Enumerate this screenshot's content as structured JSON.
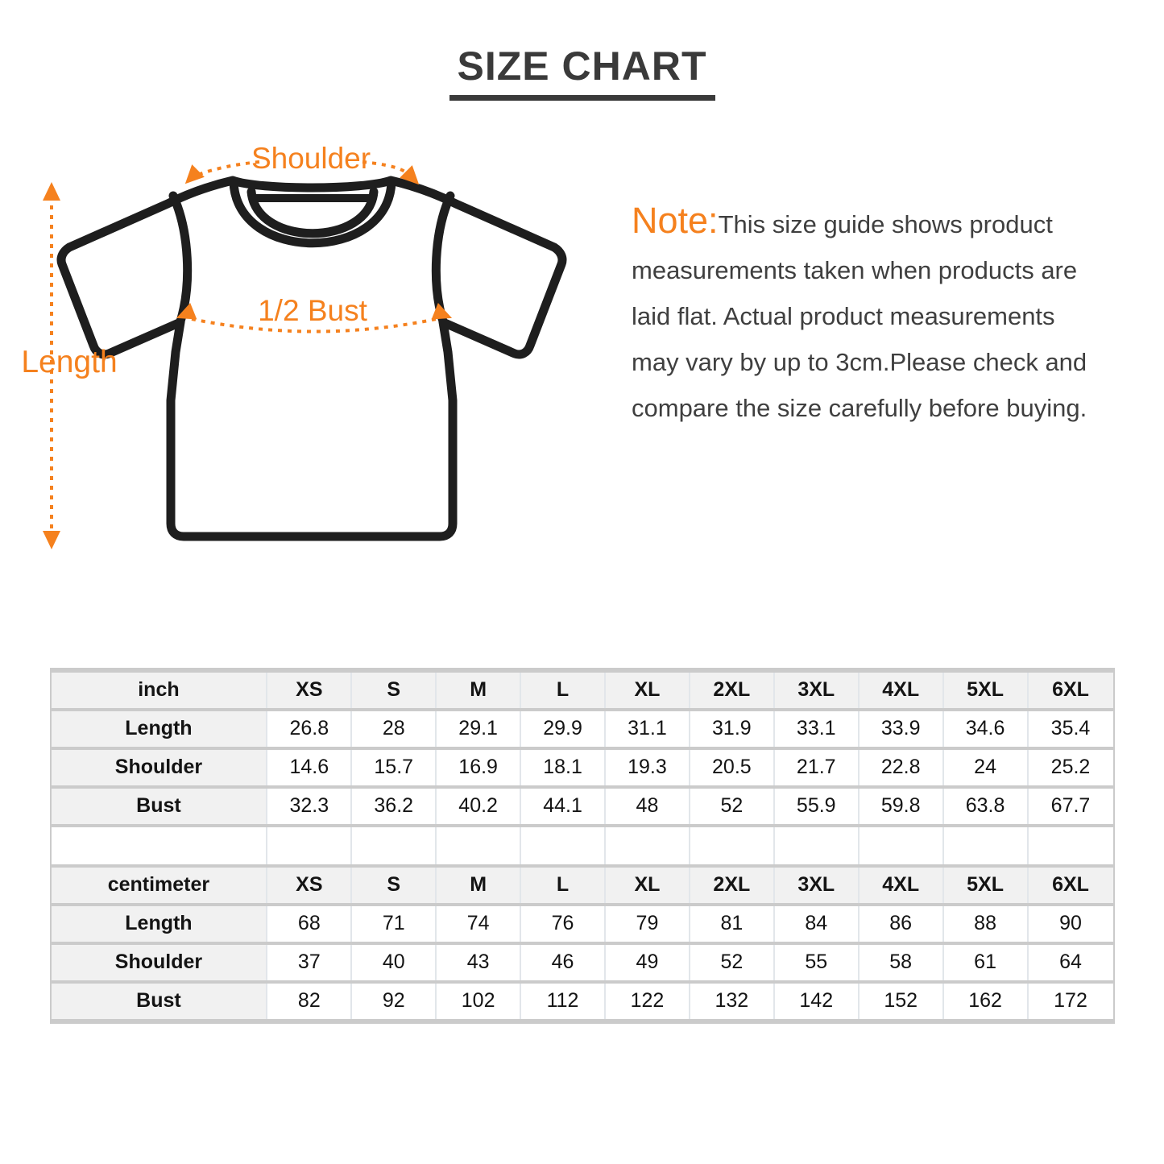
{
  "page": {
    "title": "SIZE CHART"
  },
  "diagram": {
    "shoulder_label": "Shoulder",
    "bust_label": "1/2 Bust",
    "length_label": "Length"
  },
  "note": {
    "prefix": "Note:",
    "body": "This size guide shows product\nmeasurements taken when products are\nlaid flat. Actual product measurements\nmay vary by up to 3cm.Please check and\ncompare the size carefully before buying."
  },
  "colors": {
    "accent_orange": "#F5811E",
    "outline_dark": "#1e1e1e",
    "title_gray": "#3a3a3a",
    "header_cell_bg": "#f1f1f1"
  },
  "chart_data": {
    "type": "table",
    "size_columns": [
      "XS",
      "S",
      "M",
      "L",
      "XL",
      "2XL",
      "3XL",
      "4XL",
      "5XL",
      "6XL"
    ],
    "tables": [
      {
        "unit_label": "inch",
        "rows": [
          {
            "label": "Length",
            "values": [
              "26.8",
              "28",
              "29.1",
              "29.9",
              "31.1",
              "31.9",
              "33.1",
              "33.9",
              "34.6",
              "35.4"
            ]
          },
          {
            "label": "Shoulder",
            "values": [
              "14.6",
              "15.7",
              "16.9",
              "18.1",
              "19.3",
              "20.5",
              "21.7",
              "22.8",
              "24",
              "25.2"
            ]
          },
          {
            "label": "Bust",
            "values": [
              "32.3",
              "36.2",
              "40.2",
              "44.1",
              "48",
              "52",
              "55.9",
              "59.8",
              "63.8",
              "67.7"
            ]
          }
        ]
      },
      {
        "unit_label": "centimeter",
        "rows": [
          {
            "label": "Length",
            "values": [
              "68",
              "71",
              "74",
              "76",
              "79",
              "81",
              "84",
              "86",
              "88",
              "90"
            ]
          },
          {
            "label": "Shoulder",
            "values": [
              "37",
              "40",
              "43",
              "46",
              "49",
              "52",
              "55",
              "58",
              "61",
              "64"
            ]
          },
          {
            "label": "Bust",
            "values": [
              "82",
              "92",
              "102",
              "112",
              "122",
              "132",
              "142",
              "152",
              "162",
              "172"
            ]
          }
        ]
      }
    ]
  }
}
